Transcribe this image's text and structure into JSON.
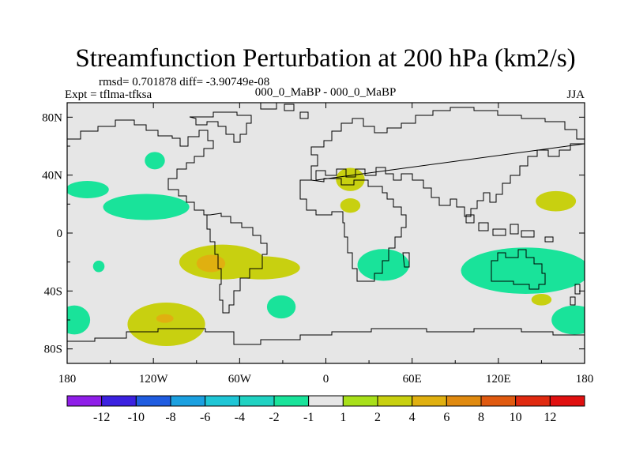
{
  "chart_data": {
    "type": "heatmap",
    "title": "Streamfunction Perturbation at 200 hPa (km2/s)",
    "stats": "rmsd= 0.701878 diff= -3.90749e-08",
    "left_label": "Expt = tflma-tfksa",
    "center_label": "000_0_MaBP - 000_0_MaBP",
    "right_label": "JJA",
    "x_range": [
      -180,
      180
    ],
    "y_range": [
      -90,
      90
    ],
    "x_ticks": [
      {
        "value": -180,
        "label": "180"
      },
      {
        "value": -120,
        "label": "120W"
      },
      {
        "value": -60,
        "label": "60W"
      },
      {
        "value": 0,
        "label": "0"
      },
      {
        "value": 60,
        "label": "60E"
      },
      {
        "value": 120,
        "label": "120E"
      },
      {
        "value": 180,
        "label": "180"
      }
    ],
    "y_ticks": [
      {
        "value": 80,
        "label": "80N"
      },
      {
        "value": 40,
        "label": "40N"
      },
      {
        "value": 0,
        "label": "0"
      },
      {
        "value": -40,
        "label": "40S"
      },
      {
        "value": -80,
        "label": "80S"
      }
    ],
    "colorbar": {
      "colors": [
        "#8f1ee8",
        "#3b21e0",
        "#1f5ce0",
        "#1ba0e0",
        "#1fc6d6",
        "#20d2c2",
        "#19e39a",
        "#e6e6e6",
        "#a8e01a",
        "#c8d010",
        "#e0b010",
        "#e08a10",
        "#e05a10",
        "#e02a10",
        "#e01010"
      ],
      "labels": [
        "-12",
        "-10",
        "-8",
        "-6",
        "-4",
        "-2",
        "-1",
        "1",
        "2",
        "4",
        "6",
        "8",
        "10",
        "12"
      ]
    },
    "background_color": "#e6e6e6",
    "anomalies": [
      {
        "lon": 173,
        "lat": -60,
        "rx": 16,
        "ry": 10,
        "level": "-1"
      },
      {
        "lon": -166,
        "lat": 30,
        "rx": 15,
        "ry": 6,
        "level": "-1"
      },
      {
        "lon": -125,
        "lat": 18,
        "rx": 30,
        "ry": 9,
        "level": "-1"
      },
      {
        "lon": -119,
        "lat": 50,
        "rx": 7,
        "ry": 6,
        "level": "-1"
      },
      {
        "lon": -175,
        "lat": -60,
        "rx": 11,
        "ry": 10,
        "level": "-1"
      },
      {
        "lon": -158,
        "lat": -23,
        "rx": 4,
        "ry": 4,
        "level": "-1"
      },
      {
        "lon": -31,
        "lat": -51,
        "rx": 10,
        "ry": 8,
        "level": "-1"
      },
      {
        "lon": 40,
        "lat": -22,
        "rx": 18,
        "ry": 11,
        "level": "-1"
      },
      {
        "lon": 139,
        "lat": -26,
        "rx": 45,
        "ry": 16,
        "level": "-1"
      },
      {
        "lon": 150,
        "lat": -46,
        "rx": 7,
        "ry": 4,
        "level": "2"
      },
      {
        "lon": 160,
        "lat": 22,
        "rx": 14,
        "ry": 7,
        "level": "2"
      },
      {
        "lon": 17,
        "lat": 37,
        "rx": 10,
        "ry": 8,
        "level": "2"
      },
      {
        "lon": 17,
        "lat": 19,
        "rx": 7,
        "ry": 5,
        "level": "2"
      },
      {
        "lon": -111,
        "lat": -63,
        "rx": 27,
        "ry": 15,
        "level": "2"
      },
      {
        "lon": -112,
        "lat": -59,
        "rx": 6,
        "ry": 3,
        "level": "4"
      },
      {
        "lon": -72,
        "lat": -20,
        "rx": 30,
        "ry": 12,
        "level": "2"
      },
      {
        "lon": -45,
        "lat": -24,
        "rx": 27,
        "ry": 8,
        "level": "2"
      },
      {
        "lon": -80,
        "lat": -21,
        "rx": 10,
        "ry": 6,
        "level": "4"
      }
    ]
  }
}
